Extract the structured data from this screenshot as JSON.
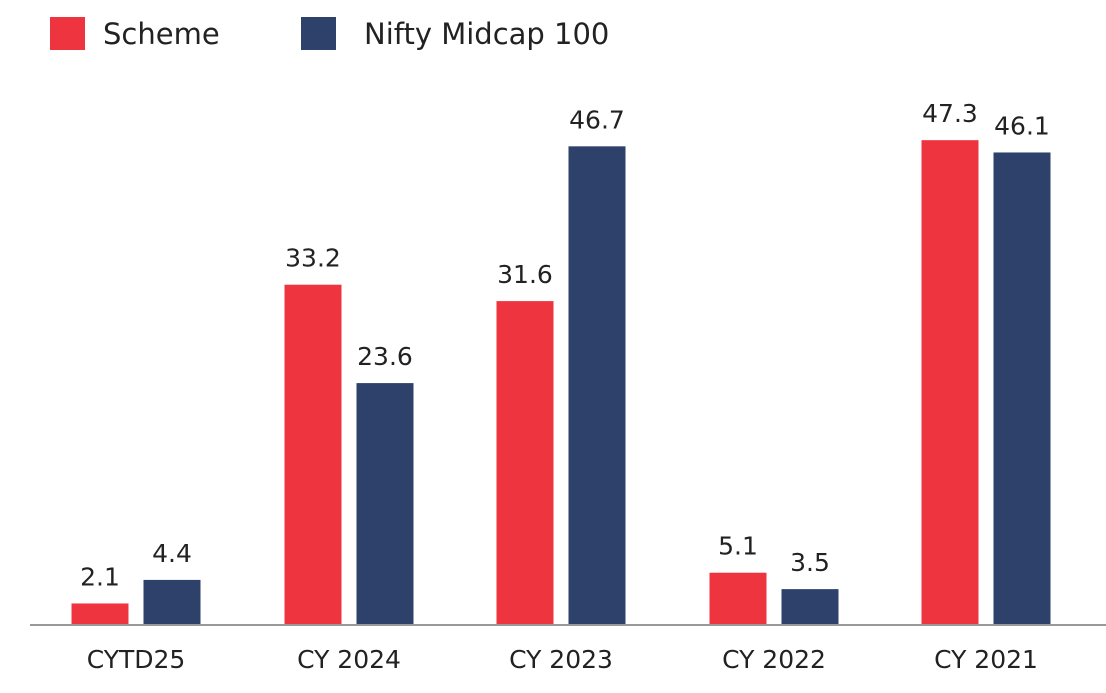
{
  "chart_data": {
    "type": "bar",
    "title": "",
    "xlabel": "",
    "ylabel": "",
    "categories": [
      "CYTD25",
      "CY 2024",
      "CY 2023",
      "CY 2022",
      "CY 2021"
    ],
    "series": [
      {
        "name": "Scheme",
        "color": "#EE343F",
        "values": [
          2.1,
          33.2,
          31.6,
          5.1,
          47.3
        ]
      },
      {
        "name": "Nifty Midcap 100",
        "color": "#2E416A",
        "values": [
          4.4,
          23.6,
          46.7,
          3.5,
          46.1
        ]
      }
    ],
    "ylim": [
      0,
      50
    ],
    "grid": false,
    "legend_position": "top-left",
    "axis_color": "#999999"
  }
}
